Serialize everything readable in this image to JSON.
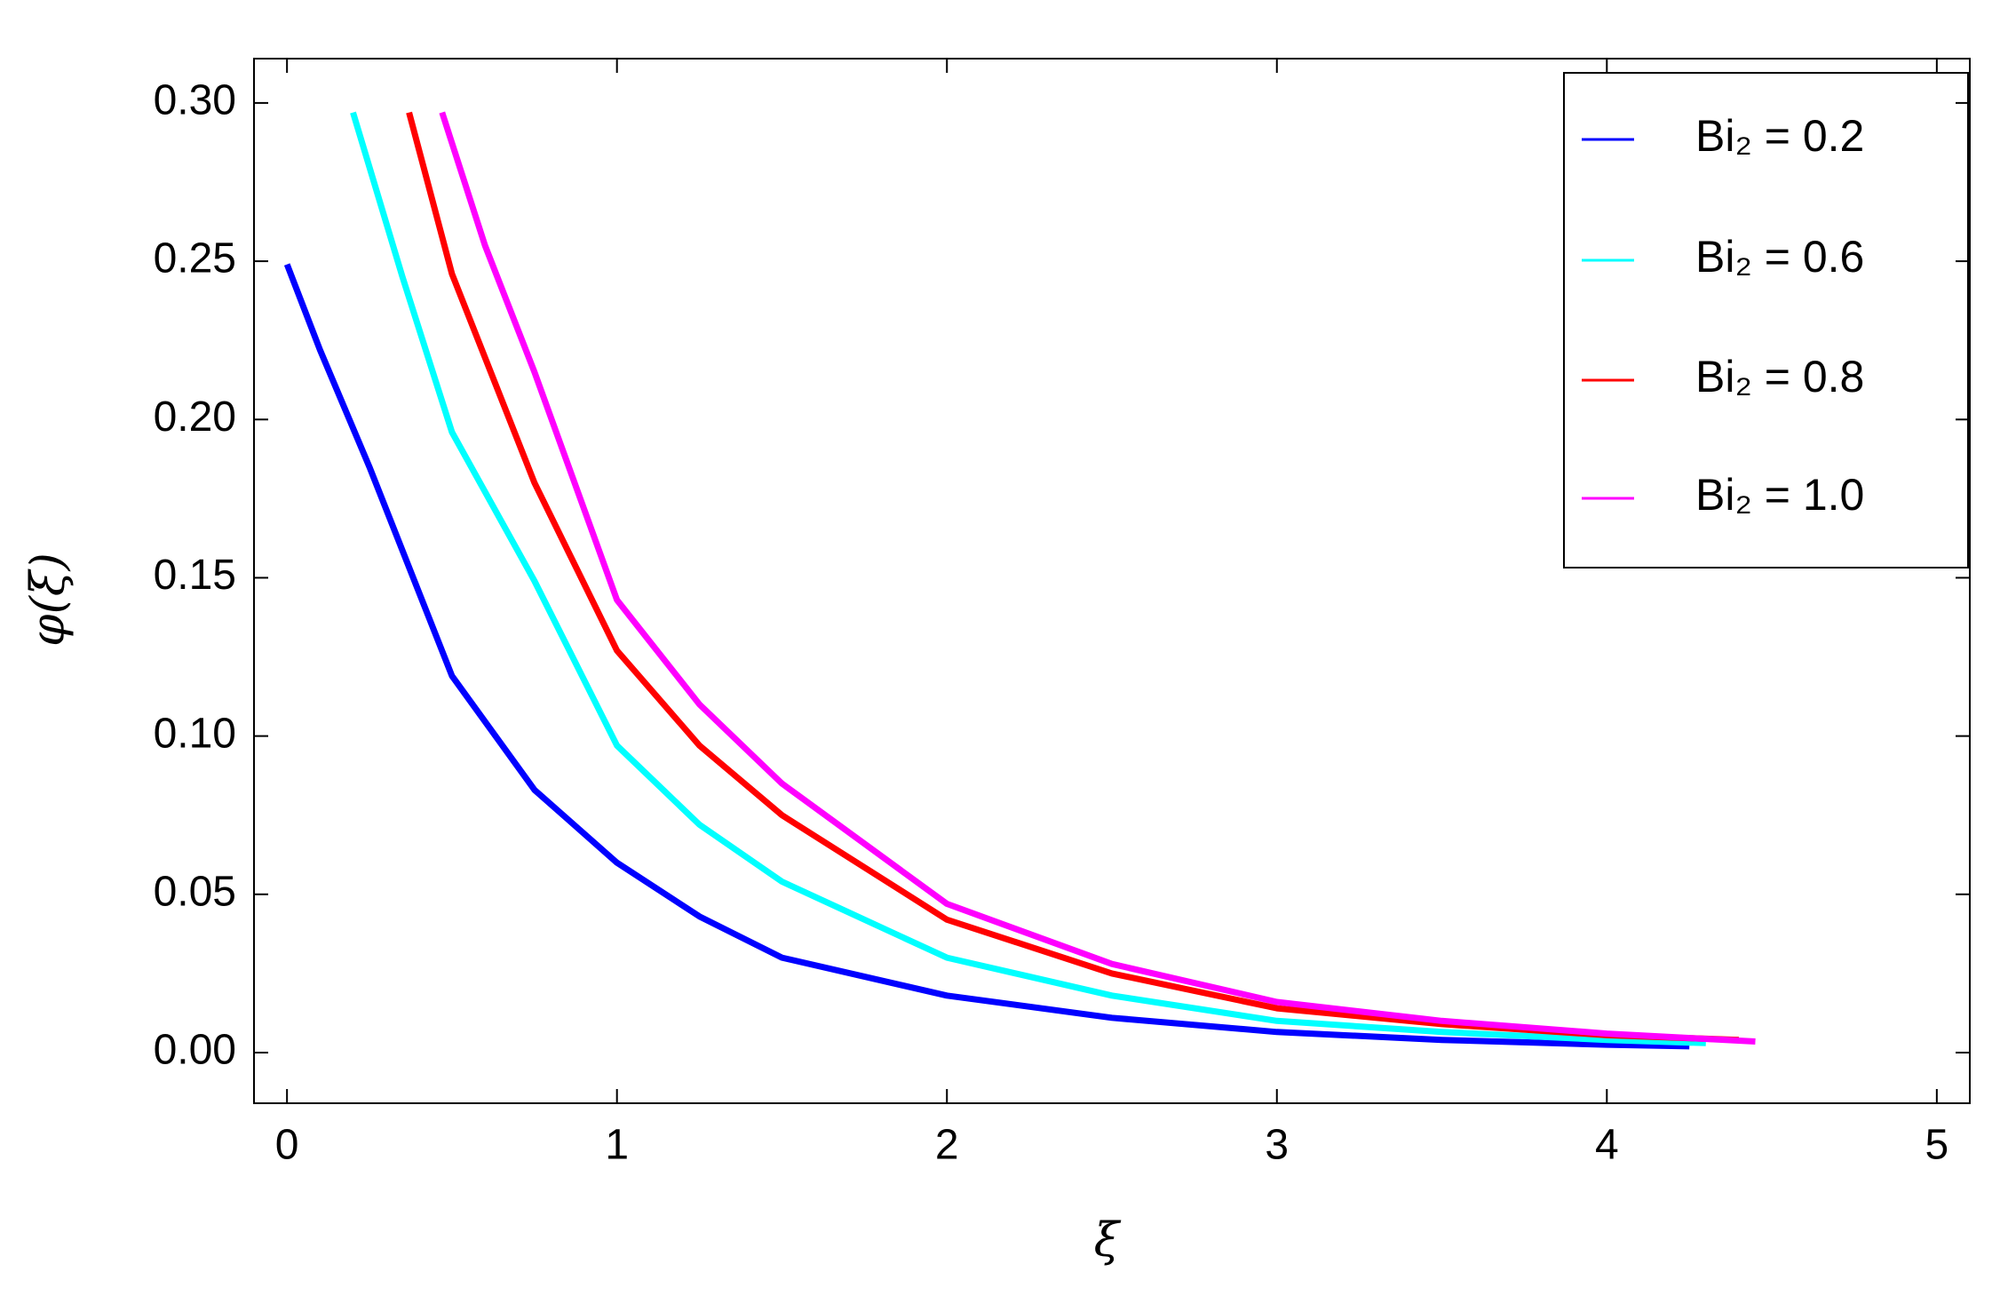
{
  "chart_data": {
    "type": "line",
    "x_label": "ξ",
    "y_label": "φ(ξ)",
    "xlim": [
      -0.1,
      5.1
    ],
    "ylim": [
      -0.016,
      0.314
    ],
    "xticks": [
      0,
      1,
      2,
      3,
      4,
      5
    ],
    "yticks": [
      {
        "value": 0,
        "label": "0.00"
      },
      0.05,
      {
        "value": 0.1,
        "label": "0.10"
      },
      0.15,
      {
        "value": 0.2,
        "label": "0.20"
      },
      0.25,
      {
        "value": 0.3,
        "label": "0.30"
      }
    ],
    "legend": "upper right",
    "series": [
      {
        "name": "Bi₂ = 0.2",
        "color": "#0000ff",
        "x": [
          0,
          0.1,
          0.25,
          0.5,
          0.75,
          1,
          1.25,
          1.5,
          2,
          2.5,
          3,
          3.5,
          4,
          4.25
        ],
        "values": [
          0.249,
          0.222,
          0.185,
          0.119,
          0.083,
          0.06,
          0.043,
          0.03,
          0.018,
          0.011,
          0.0065,
          0.004,
          0.0025,
          0.002
        ]
      },
      {
        "name": "Bi₂ = 0.6",
        "color": "#00ffff",
        "x": [
          0.2,
          0.35,
          0.5,
          0.75,
          1,
          1.25,
          1.5,
          2,
          2.5,
          3,
          3.5,
          4,
          4.3
        ],
        "values": [
          0.297,
          0.245,
          0.196,
          0.149,
          0.097,
          0.072,
          0.054,
          0.03,
          0.018,
          0.01,
          0.0065,
          0.004,
          0.003
        ]
      },
      {
        "name": "Bi₂ = 0.8",
        "color": "#ff0000",
        "x": [
          0.37,
          0.5,
          0.75,
          1,
          1.25,
          1.5,
          2,
          2.5,
          3,
          3.5,
          4,
          4.4
        ],
        "values": [
          0.297,
          0.246,
          0.18,
          0.127,
          0.097,
          0.075,
          0.042,
          0.025,
          0.014,
          0.009,
          0.0055,
          0.004
        ]
      },
      {
        "name": "Bi₂ = 1.0",
        "color": "#ff00ff",
        "x": [
          0.47,
          0.6,
          0.75,
          1,
          1.25,
          1.5,
          2,
          2.5,
          3,
          3.5,
          4,
          4.45
        ],
        "values": [
          0.297,
          0.255,
          0.215,
          0.143,
          0.11,
          0.085,
          0.047,
          0.028,
          0.016,
          0.01,
          0.006,
          0.0035
        ]
      }
    ]
  }
}
